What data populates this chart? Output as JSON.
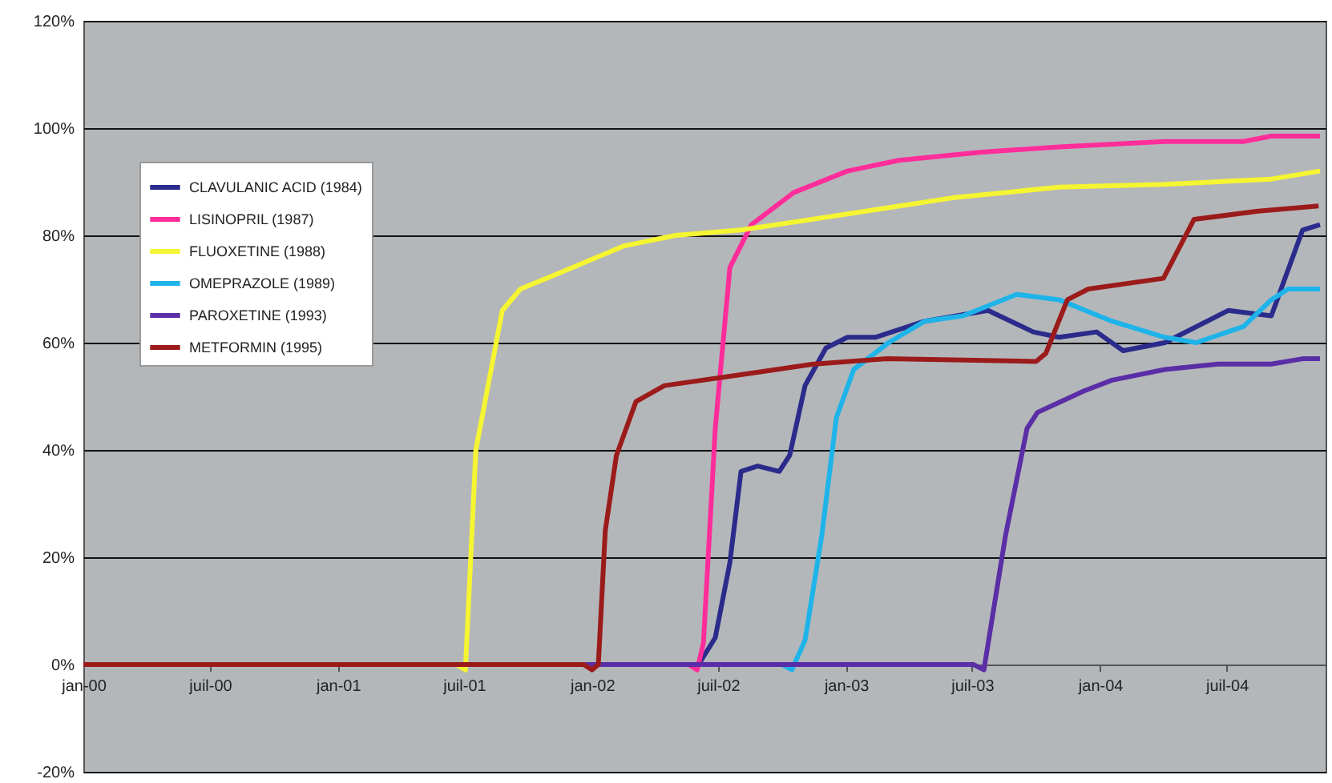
{
  "chart_data": {
    "type": "line",
    "legend": "top left",
    "grid": "y",
    "line_style": "solid",
    "marker": "none",
    "xlim": [
      "2000-01-01",
      "2004-11-20"
    ],
    "xticks": [
      {
        "value": "2000-01",
        "label": "jan-00"
      },
      {
        "value": "2000-07",
        "label": "juil-00"
      },
      {
        "value": "2001-01",
        "label": "jan-01"
      },
      {
        "value": "2001-07",
        "label": "juil-01"
      },
      {
        "value": "2002-01",
        "label": "jan-02"
      },
      {
        "value": "2002-07",
        "label": "juil-02"
      },
      {
        "value": "2003-01",
        "label": "jan-03"
      },
      {
        "value": "2003-07",
        "label": "juil-03"
      },
      {
        "value": "2004-01",
        "label": "jan-04"
      },
      {
        "value": "2004-07",
        "label": "juil-04"
      }
    ],
    "ylim": [
      -20,
      120
    ],
    "yticks": [
      {
        "value": -20,
        "label": "-20%"
      },
      {
        "value": 0,
        "label": "0%"
      },
      {
        "value": 20,
        "label": "20%"
      },
      {
        "value": 40,
        "label": "40%"
      },
      {
        "value": 60,
        "label": "60%"
      },
      {
        "value": 80,
        "label": "80%"
      },
      {
        "value": 100,
        "label": "100%"
      },
      {
        "value": 120,
        "label": "120%"
      }
    ],
    "series": [
      {
        "name": "CLAVULANIC ACID (1984)",
        "color": "#2b2b8c",
        "x": [
          "2000-01-01",
          "2002-06-03",
          "2002-06-27",
          "2002-07-18",
          "2002-08-03",
          "2002-08-27",
          "2002-09-27",
          "2002-10-12",
          "2002-11-03",
          "2002-12-03",
          "2003-01-03",
          "2003-02-12",
          "2003-04-24",
          "2003-07-24",
          "2003-09-27",
          "2003-11-03",
          "2003-12-27",
          "2004-02-03",
          "2004-04-03",
          "2004-07-03",
          "2004-09-03",
          "2004-10-18",
          "2004-11-12"
        ],
        "values": [
          0,
          0,
          5,
          19,
          36,
          37,
          36,
          39,
          52,
          59,
          61,
          61,
          64,
          66,
          62,
          61,
          62,
          58.5,
          60,
          66,
          65,
          81,
          82
        ]
      },
      {
        "name": "LISINOPRIL (1987)",
        "color": "#ff2d9a",
        "x": [
          "2000-01-01",
          "2002-05-20",
          "2002-06-01",
          "2002-06-10",
          "2002-06-27",
          "2002-07-18",
          "2002-08-18",
          "2002-10-18",
          "2003-01-03",
          "2003-03-18",
          "2003-07-12",
          "2003-11-03",
          "2004-04-03",
          "2004-07-25",
          "2004-09-03",
          "2004-11-12"
        ],
        "values": [
          0,
          0,
          -1,
          4,
          44,
          74,
          82,
          88,
          92,
          94,
          95.5,
          96.5,
          97.5,
          97.5,
          98.5,
          98.5
        ]
      },
      {
        "name": "FLUOXETINE (1988)",
        "color": "#f5f532",
        "x": [
          "2000-01-01",
          "2001-06-20",
          "2001-07-03",
          "2001-07-18",
          "2001-08-25",
          "2001-09-20",
          "2001-11-15",
          "2002-02-15",
          "2002-05-01",
          "2002-08-03",
          "2003-01-03",
          "2003-06-03",
          "2003-11-03",
          "2004-04-03",
          "2004-09-03",
          "2004-11-12"
        ],
        "values": [
          0,
          0,
          -1,
          40,
          66,
          70,
          73,
          78,
          80,
          81,
          84,
          87,
          89,
          89.5,
          90.5,
          92
        ]
      },
      {
        "name": "OMEPRAZOLE (1989)",
        "color": "#1eb4ea",
        "x": [
          "2000-01-01",
          "2002-10-01",
          "2002-10-15",
          "2002-11-03",
          "2002-11-27",
          "2002-12-18",
          "2003-01-12",
          "2003-03-03",
          "2003-04-24",
          "2003-06-18",
          "2003-09-03",
          "2003-11-03",
          "2004-01-18",
          "2004-04-03",
          "2004-05-18",
          "2004-07-25",
          "2004-09-03",
          "2004-09-27",
          "2004-11-12"
        ],
        "values": [
          0,
          0,
          -1,
          4.5,
          24,
          46,
          55,
          60,
          64,
          65,
          69,
          68,
          64,
          61,
          60,
          63,
          68,
          70,
          70
        ]
      },
      {
        "name": "PAROXETINE (1993)",
        "color": "#5a2ea6",
        "x": [
          "2000-01-01",
          "2003-07-03",
          "2003-07-18",
          "2003-08-18",
          "2003-09-18",
          "2003-10-03",
          "2003-12-09",
          "2004-01-18",
          "2004-04-03",
          "2004-06-18",
          "2004-09-03",
          "2004-10-18",
          "2004-11-12"
        ],
        "values": [
          0,
          0,
          -1,
          24,
          44,
          47,
          51,
          53,
          55,
          56,
          56,
          57,
          57
        ]
      },
      {
        "name": "METFORMIN (1995)",
        "color": "#9b1b1b",
        "x": [
          "2000-01-01",
          "2001-12-20",
          "2002-01-01",
          "2002-01-10",
          "2002-01-20",
          "2002-02-05",
          "2002-03-05",
          "2002-04-15",
          "2002-08-01",
          "2002-11-15",
          "2003-03-01",
          "2003-10-01",
          "2003-10-15",
          "2003-11-15",
          "2003-12-15",
          "2004-04-01",
          "2004-05-15",
          "2004-08-15",
          "2004-11-10"
        ],
        "values": [
          0,
          0,
          -1,
          0,
          25,
          39,
          49,
          52,
          54,
          56,
          57,
          56.5,
          58,
          68,
          70,
          72,
          83,
          84.5,
          85.5
        ]
      }
    ]
  }
}
